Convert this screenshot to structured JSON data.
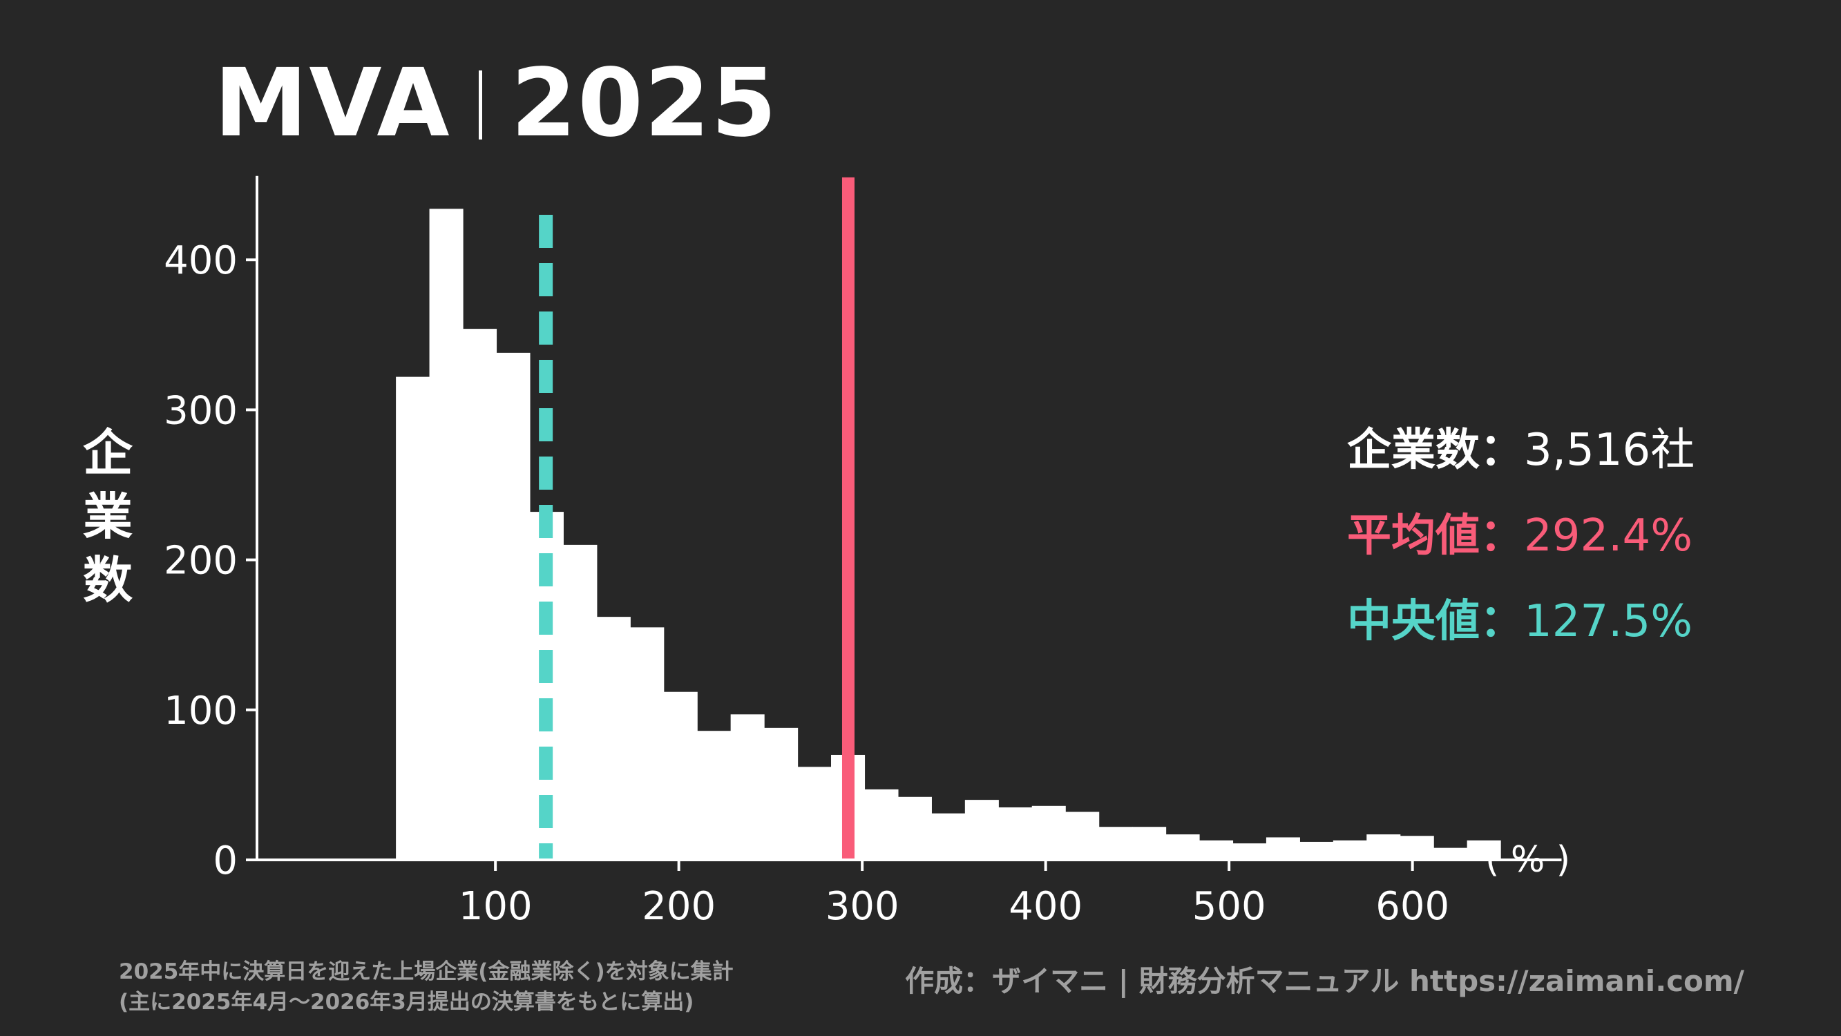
{
  "title": {
    "metric": "MVA",
    "year": "2025"
  },
  "stats": {
    "count_label": "企業数：",
    "count_value": "3,516社",
    "mean_label": "平均値：",
    "mean_value": "292.4%",
    "median_label": "中央値：",
    "median_value": "127.5%"
  },
  "axis": {
    "ylabel_chars": [
      "企",
      "業",
      "数"
    ],
    "xunit": "( % )"
  },
  "footer": {
    "note_line1": "2025年中に決算日を迎えた上場企業(金融業除く)を対象に集計",
    "note_line2": "(主に2025年4月～2026年3月提出の決算書をもとに算出)",
    "credit": "作成：ザイマニ | 財務分析マニュアル https://zaimani.com/"
  },
  "colors": {
    "background": "#272727",
    "bars": "#ffffff",
    "mean": "#f95c79",
    "median": "#55d4c8",
    "muted": "#a0a0a0"
  },
  "chart_data": {
    "type": "bar",
    "title": "MVA | 2025",
    "xlabel": "( % )",
    "ylabel": "企業数",
    "xlim": [
      -30,
      670
    ],
    "ylim": [
      0,
      455
    ],
    "xticks": [
      100,
      200,
      300,
      400,
      500,
      600
    ],
    "yticks": [
      0,
      100,
      200,
      300,
      400
    ],
    "grid": false,
    "bin_width": 18.25,
    "bins": [
      {
        "x0": 45.75,
        "count": 322
      },
      {
        "x0": 64.0,
        "count": 434
      },
      {
        "x0": 82.25,
        "count": 354
      },
      {
        "x0": 100.5,
        "count": 338
      },
      {
        "x0": 118.75,
        "count": 232
      },
      {
        "x0": 137.0,
        "count": 210
      },
      {
        "x0": 155.25,
        "count": 162
      },
      {
        "x0": 173.5,
        "count": 155
      },
      {
        "x0": 191.75,
        "count": 112
      },
      {
        "x0": 210.0,
        "count": 86
      },
      {
        "x0": 228.25,
        "count": 97
      },
      {
        "x0": 246.5,
        "count": 88
      },
      {
        "x0": 264.75,
        "count": 62
      },
      {
        "x0": 283.0,
        "count": 70
      },
      {
        "x0": 301.25,
        "count": 47
      },
      {
        "x0": 319.5,
        "count": 42
      },
      {
        "x0": 337.75,
        "count": 31
      },
      {
        "x0": 356.0,
        "count": 40
      },
      {
        "x0": 374.25,
        "count": 35
      },
      {
        "x0": 392.5,
        "count": 36
      },
      {
        "x0": 410.75,
        "count": 32
      },
      {
        "x0": 429.0,
        "count": 22
      },
      {
        "x0": 447.25,
        "count": 22
      },
      {
        "x0": 465.5,
        "count": 17
      },
      {
        "x0": 483.75,
        "count": 13
      },
      {
        "x0": 502.0,
        "count": 11
      },
      {
        "x0": 520.25,
        "count": 15
      },
      {
        "x0": 538.5,
        "count": 12
      },
      {
        "x0": 556.75,
        "count": 13
      },
      {
        "x0": 575.0,
        "count": 17
      },
      {
        "x0": 593.25,
        "count": 16
      },
      {
        "x0": 611.5,
        "count": 8
      },
      {
        "x0": 629.75,
        "count": 13
      }
    ],
    "mean": 292.4,
    "median": 127.5,
    "count": 3516
  }
}
